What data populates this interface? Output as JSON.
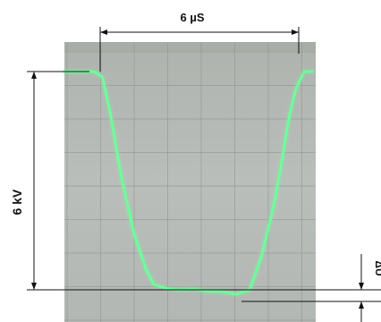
{
  "chart_data": {
    "type": "line",
    "title": "",
    "xlabel": "",
    "ylabel": "",
    "grid": true,
    "annotations": {
      "pulse_width": "6 µS",
      "amplitude": "6 kV",
      "droop": "ΔU"
    },
    "series": [
      {
        "x": [
          0.0,
          0.9,
          1.15,
          1.4,
          1.7,
          2.1,
          2.45,
          2.7,
          3.05,
          3.4,
          3.9,
          4.3,
          4.75,
          5.2,
          5.6,
          5.95,
          6.35,
          6.6,
          6.8,
          7.0,
          7.25,
          7.5
        ],
        "y": [
          6.0,
          6.0,
          5.85,
          4.8,
          3.2,
          1.55,
          0.6,
          0.15,
          0.05,
          0.0,
          0.02,
          -0.03,
          -0.05,
          -0.12,
          0.0,
          0.9,
          2.4,
          3.7,
          4.8,
          5.55,
          6.0,
          6.0
        ]
      }
    ],
    "colors": {
      "trace": "#6dff9a",
      "screen": "#b5b9b5",
      "graticule": "#8e938e"
    }
  }
}
